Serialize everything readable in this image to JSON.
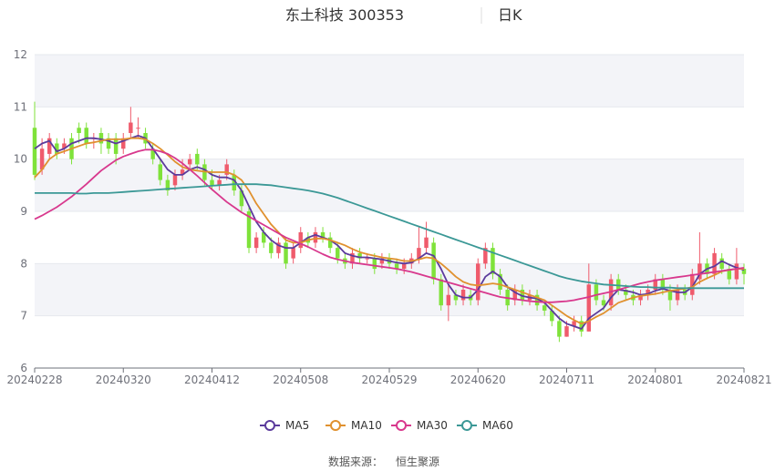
{
  "chart_data": {
    "type": "candlestick",
    "title": "东土科技 300353",
    "period_label": "日K",
    "source_label": "数据来源：",
    "source_value": "恒生聚源",
    "ylim": [
      6,
      12
    ],
    "yticks": [
      "6",
      "7",
      "8",
      "9",
      "10",
      "11",
      "12"
    ],
    "xlabels": [
      "20240228",
      "20240320",
      "20240412",
      "20240508",
      "20240529",
      "20240620",
      "20240711",
      "20240801",
      "20240821"
    ],
    "legend_position": "bottom",
    "colors": {
      "up": "#ef5b6c",
      "down": "#7fe23a",
      "MA5": "#5b3b9c",
      "MA10": "#e0912f",
      "MA30": "#d8388d",
      "MA60": "#3b9896",
      "band": "#f3f4f8",
      "grid": "#e6e8ee"
    },
    "candles": [
      [
        10.6,
        9.7,
        11.1,
        9.6
      ],
      [
        9.8,
        10.2,
        10.4,
        9.7
      ],
      [
        10.1,
        10.4,
        10.5,
        10.0
      ],
      [
        10.3,
        10.1,
        10.4,
        10.0
      ],
      [
        10.2,
        10.3,
        10.4,
        10.1
      ],
      [
        10.4,
        10.0,
        10.5,
        9.9
      ],
      [
        10.6,
        10.5,
        10.7,
        10.3
      ],
      [
        10.6,
        10.3,
        10.7,
        10.2
      ],
      [
        10.4,
        10.4,
        10.5,
        10.2
      ],
      [
        10.5,
        10.3,
        10.6,
        10.1
      ],
      [
        10.4,
        10.2,
        10.5,
        10.1
      ],
      [
        10.4,
        10.1,
        10.5,
        9.9
      ],
      [
        10.2,
        10.4,
        10.5,
        10.1
      ],
      [
        10.5,
        10.7,
        11.0,
        10.4
      ],
      [
        10.6,
        10.6,
        10.8,
        10.4
      ],
      [
        10.5,
        10.3,
        10.6,
        10.2
      ],
      [
        10.2,
        10.0,
        10.3,
        9.9
      ],
      [
        9.9,
        9.6,
        10.0,
        9.5
      ],
      [
        9.6,
        9.4,
        9.7,
        9.3
      ],
      [
        9.5,
        9.7,
        9.8,
        9.4
      ],
      [
        9.7,
        9.8,
        10.0,
        9.6
      ],
      [
        9.9,
        10.0,
        10.1,
        9.8
      ],
      [
        10.1,
        9.9,
        10.2,
        9.8
      ],
      [
        9.9,
        9.6,
        10.0,
        9.5
      ],
      [
        9.6,
        9.5,
        9.8,
        9.4
      ],
      [
        9.5,
        9.6,
        9.7,
        9.4
      ],
      [
        9.7,
        9.9,
        10.0,
        9.6
      ],
      [
        9.7,
        9.4,
        9.8,
        9.3
      ],
      [
        9.4,
        9.1,
        9.5,
        9.0
      ],
      [
        9.0,
        8.3,
        9.1,
        8.2
      ],
      [
        8.3,
        8.5,
        8.6,
        8.2
      ],
      [
        8.6,
        8.4,
        8.7,
        8.3
      ],
      [
        8.4,
        8.2,
        8.5,
        8.1
      ],
      [
        8.2,
        8.4,
        8.5,
        8.1
      ],
      [
        8.4,
        8.0,
        8.5,
        7.9
      ],
      [
        8.1,
        8.3,
        8.4,
        8.0
      ],
      [
        8.3,
        8.6,
        8.7,
        8.2
      ],
      [
        8.5,
        8.4,
        8.6,
        8.3
      ],
      [
        8.4,
        8.6,
        8.7,
        8.3
      ],
      [
        8.6,
        8.5,
        8.7,
        8.4
      ],
      [
        8.5,
        8.3,
        8.6,
        8.2
      ],
      [
        8.3,
        8.1,
        8.4,
        8.0
      ],
      [
        8.1,
        8.0,
        8.2,
        7.9
      ],
      [
        8.0,
        8.2,
        8.3,
        7.9
      ],
      [
        8.2,
        8.1,
        8.3,
        8.0
      ],
      [
        8.1,
        8.1,
        8.2,
        8.0
      ],
      [
        8.1,
        7.9,
        8.2,
        7.8
      ],
      [
        8.0,
        8.1,
        8.2,
        7.9
      ],
      [
        8.1,
        8.0,
        8.2,
        7.9
      ],
      [
        8.0,
        7.9,
        8.1,
        7.8
      ],
      [
        7.9,
        8.0,
        8.1,
        7.8
      ],
      [
        8.0,
        8.1,
        8.2,
        7.9
      ],
      [
        8.1,
        8.3,
        8.7,
        8.0
      ],
      [
        8.3,
        8.5,
        8.8,
        8.2
      ],
      [
        8.4,
        7.7,
        8.5,
        7.6
      ],
      [
        7.7,
        7.2,
        7.8,
        7.1
      ],
      [
        7.2,
        7.4,
        7.6,
        6.9
      ],
      [
        7.4,
        7.3,
        7.5,
        7.2
      ],
      [
        7.3,
        7.5,
        7.6,
        7.2
      ],
      [
        7.4,
        7.3,
        7.5,
        7.2
      ],
      [
        7.3,
        8.0,
        8.1,
        7.2
      ],
      [
        8.0,
        8.3,
        8.4,
        7.9
      ],
      [
        8.3,
        7.8,
        8.4,
        7.7
      ],
      [
        7.8,
        7.5,
        7.9,
        7.4
      ],
      [
        7.5,
        7.2,
        7.6,
        7.1
      ],
      [
        7.3,
        7.5,
        7.6,
        7.2
      ],
      [
        7.5,
        7.3,
        7.6,
        7.2
      ],
      [
        7.3,
        7.4,
        7.5,
        7.2
      ],
      [
        7.4,
        7.2,
        7.5,
        7.1
      ],
      [
        7.2,
        7.1,
        7.3,
        7.0
      ],
      [
        7.1,
        6.9,
        7.2,
        6.8
      ],
      [
        6.9,
        6.6,
        7.0,
        6.5
      ],
      [
        6.6,
        6.8,
        6.9,
        6.6
      ],
      [
        6.8,
        6.9,
        7.0,
        6.7
      ],
      [
        6.9,
        6.7,
        7.0,
        6.6
      ],
      [
        6.7,
        7.6,
        8.0,
        6.7
      ],
      [
        7.6,
        7.3,
        7.7,
        7.2
      ],
      [
        7.3,
        7.2,
        7.4,
        7.1
      ],
      [
        7.2,
        7.7,
        7.8,
        7.1
      ],
      [
        7.7,
        7.5,
        7.8,
        7.4
      ],
      [
        7.5,
        7.4,
        7.6,
        7.3
      ],
      [
        7.4,
        7.3,
        7.5,
        7.2
      ],
      [
        7.3,
        7.4,
        7.5,
        7.2
      ],
      [
        7.4,
        7.5,
        7.6,
        7.3
      ],
      [
        7.5,
        7.7,
        7.8,
        7.4
      ],
      [
        7.7,
        7.5,
        7.8,
        7.4
      ],
      [
        7.5,
        7.3,
        7.6,
        7.1
      ],
      [
        7.3,
        7.5,
        7.6,
        7.2
      ],
      [
        7.5,
        7.4,
        7.6,
        7.3
      ],
      [
        7.4,
        7.8,
        7.9,
        7.3
      ],
      [
        7.7,
        8.0,
        8.6,
        7.6
      ],
      [
        8.0,
        7.8,
        8.1,
        7.7
      ],
      [
        7.8,
        8.2,
        8.3,
        7.7
      ],
      [
        8.1,
        7.9,
        8.2,
        7.8
      ],
      [
        7.9,
        7.7,
        8.0,
        7.6
      ],
      [
        7.7,
        8.0,
        8.3,
        7.6
      ],
      [
        7.9,
        7.8,
        8.0,
        7.6
      ]
    ],
    "series": [
      {
        "name": "MA5",
        "values": [
          10.2,
          10.3,
          10.35,
          10.15,
          10.2,
          10.3,
          10.35,
          10.4,
          10.4,
          10.38,
          10.35,
          10.3,
          10.35,
          10.4,
          10.45,
          10.4,
          10.2,
          10.0,
          9.8,
          9.7,
          9.7,
          9.8,
          9.85,
          9.8,
          9.7,
          9.65,
          9.65,
          9.6,
          9.4,
          9.1,
          8.8,
          8.6,
          8.45,
          8.35,
          8.3,
          8.3,
          8.4,
          8.5,
          8.55,
          8.5,
          8.45,
          8.35,
          8.2,
          8.15,
          8.12,
          8.12,
          8.1,
          8.08,
          8.05,
          8.02,
          8.0,
          8.02,
          8.1,
          8.2,
          8.15,
          7.9,
          7.6,
          7.4,
          7.35,
          7.35,
          7.5,
          7.75,
          7.85,
          7.75,
          7.55,
          7.45,
          7.38,
          7.35,
          7.33,
          7.25,
          7.1,
          6.95,
          6.85,
          6.8,
          6.75,
          6.95,
          7.05,
          7.15,
          7.35,
          7.5,
          7.48,
          7.45,
          7.4,
          7.42,
          7.48,
          7.52,
          7.48,
          7.45,
          7.45,
          7.55,
          7.8,
          7.9,
          7.95,
          8.05,
          7.98,
          7.92,
          7.88
        ]
      },
      {
        "name": "MA10",
        "values": [
          9.65,
          9.8,
          10.0,
          10.1,
          10.15,
          10.2,
          10.25,
          10.3,
          10.32,
          10.35,
          10.38,
          10.38,
          10.38,
          10.4,
          10.4,
          10.38,
          10.3,
          10.2,
          10.08,
          9.95,
          9.85,
          9.8,
          9.78,
          9.76,
          9.75,
          9.75,
          9.75,
          9.7,
          9.6,
          9.4,
          9.15,
          8.95,
          8.75,
          8.6,
          8.45,
          8.4,
          8.4,
          8.45,
          8.48,
          8.48,
          8.45,
          8.4,
          8.35,
          8.28,
          8.22,
          8.18,
          8.15,
          8.12,
          8.1,
          8.08,
          8.05,
          8.05,
          8.08,
          8.12,
          8.1,
          8.0,
          7.88,
          7.75,
          7.65,
          7.6,
          7.58,
          7.6,
          7.62,
          7.6,
          7.55,
          7.5,
          7.45,
          7.4,
          7.35,
          7.3,
          7.2,
          7.1,
          7.0,
          6.92,
          6.85,
          6.9,
          6.98,
          7.05,
          7.15,
          7.25,
          7.3,
          7.35,
          7.38,
          7.4,
          7.42,
          7.45,
          7.48,
          7.5,
          7.52,
          7.55,
          7.65,
          7.72,
          7.78,
          7.85,
          7.88,
          7.9,
          7.9
        ]
      },
      {
        "name": "MA30",
        "values": [
          8.85,
          8.92,
          9.0,
          9.08,
          9.18,
          9.28,
          9.4,
          9.52,
          9.65,
          9.78,
          9.88,
          9.98,
          10.05,
          10.1,
          10.15,
          10.18,
          10.18,
          10.15,
          10.1,
          10.02,
          9.92,
          9.8,
          9.68,
          9.55,
          9.42,
          9.3,
          9.18,
          9.08,
          8.98,
          8.9,
          8.82,
          8.74,
          8.66,
          8.58,
          8.5,
          8.44,
          8.38,
          8.32,
          8.25,
          8.18,
          8.12,
          8.08,
          8.05,
          8.02,
          8.0,
          7.98,
          7.96,
          7.94,
          7.92,
          7.9,
          7.87,
          7.84,
          7.8,
          7.76,
          7.72,
          7.68,
          7.64,
          7.6,
          7.56,
          7.52,
          7.48,
          7.44,
          7.4,
          7.36,
          7.34,
          7.32,
          7.3,
          7.28,
          7.27,
          7.26,
          7.26,
          7.27,
          7.28,
          7.3,
          7.33,
          7.36,
          7.4,
          7.43,
          7.46,
          7.5,
          7.54,
          7.58,
          7.62,
          7.65,
          7.68,
          7.7,
          7.72,
          7.74,
          7.76,
          7.78,
          7.8,
          7.82,
          7.84,
          7.86,
          7.88,
          7.9,
          7.92
        ]
      },
      {
        "name": "MA60",
        "values": [
          9.35,
          9.35,
          9.35,
          9.35,
          9.35,
          9.35,
          9.34,
          9.34,
          9.35,
          9.35,
          9.35,
          9.36,
          9.37,
          9.38,
          9.39,
          9.4,
          9.41,
          9.42,
          9.43,
          9.44,
          9.45,
          9.46,
          9.47,
          9.48,
          9.49,
          9.5,
          9.51,
          9.52,
          9.52,
          9.52,
          9.52,
          9.51,
          9.5,
          9.48,
          9.46,
          9.44,
          9.42,
          9.4,
          9.37,
          9.34,
          9.3,
          9.26,
          9.21,
          9.16,
          9.11,
          9.06,
          9.01,
          8.96,
          8.91,
          8.86,
          8.81,
          8.76,
          8.71,
          8.66,
          8.61,
          8.56,
          8.51,
          8.46,
          8.41,
          8.36,
          8.31,
          8.26,
          8.21,
          8.16,
          8.11,
          8.06,
          8.01,
          7.96,
          7.91,
          7.86,
          7.81,
          7.76,
          7.72,
          7.69,
          7.66,
          7.64,
          7.62,
          7.6,
          7.59,
          7.58,
          7.57,
          7.56,
          7.55,
          7.55,
          7.54,
          7.54,
          7.54,
          7.53,
          7.53,
          7.53,
          7.53,
          7.53,
          7.53,
          7.53,
          7.53,
          7.53,
          7.53
        ]
      }
    ],
    "legend": [
      "MA5",
      "MA10",
      "MA30",
      "MA60"
    ]
  }
}
